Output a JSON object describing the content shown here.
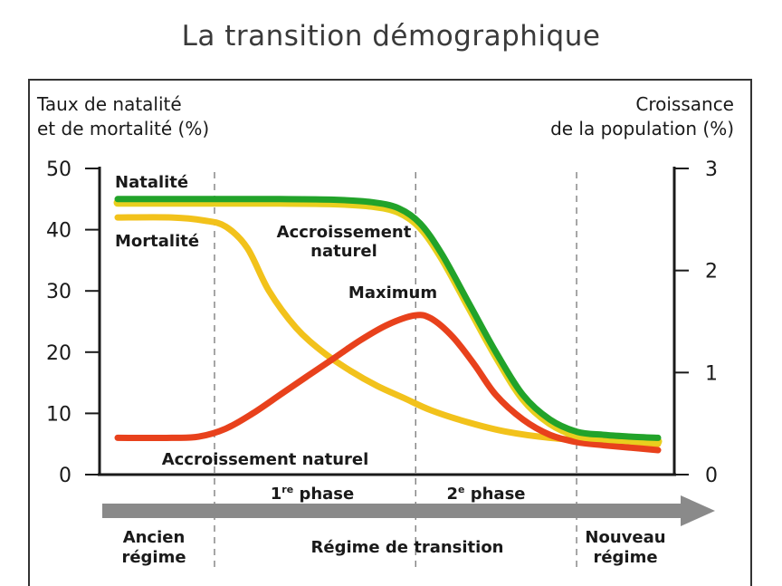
{
  "title": "La transition démographique",
  "chart_data": {
    "type": "line",
    "y_left_label_lines": [
      "Taux de natalité",
      "et de mortalité (%)"
    ],
    "y_right_label_lines": [
      "Croissance",
      "de la population (%)"
    ],
    "y_left_ticks": [
      0,
      10,
      20,
      30,
      40,
      50
    ],
    "y_left_lim": [
      0,
      50
    ],
    "y_right_ticks": [
      0,
      1,
      2,
      3
    ],
    "y_right_lim": [
      0,
      3
    ],
    "x_lim": [
      0,
      100
    ],
    "phase_boundaries": [
      20,
      55,
      83
    ],
    "series": [
      {
        "name": "Natalité",
        "color": "#22a32a",
        "axis": "left",
        "x": [
          0,
          10,
          20,
          30,
          40,
          47,
          52,
          56,
          60,
          65,
          70,
          75,
          80,
          85,
          90,
          95,
          100
        ],
        "y": [
          45,
          45,
          45,
          45,
          44.9,
          44.5,
          43.5,
          41,
          36,
          28,
          20,
          13,
          9,
          7,
          6.5,
          6.2,
          6
        ]
      },
      {
        "name": "Mortalité",
        "color": "#f2c21b",
        "axis": "left",
        "x": [
          0,
          10,
          16,
          20,
          24,
          28,
          33,
          38,
          43,
          48,
          53,
          58,
          65,
          72,
          80,
          88,
          95,
          100
        ],
        "y": [
          42,
          42,
          41.5,
          40.5,
          37,
          30,
          24,
          20,
          17,
          14.5,
          12.5,
          10.5,
          8.5,
          7,
          6,
          5.5,
          5.2,
          5
        ]
      },
      {
        "name": "Accroissement naturel",
        "color": "#e8411c",
        "axis": "left",
        "x": [
          0,
          10,
          15,
          20,
          25,
          30,
          35,
          40,
          45,
          50,
          55,
          58,
          62,
          66,
          70,
          75,
          80,
          85,
          90,
          95,
          100
        ],
        "y": [
          6,
          6,
          6.2,
          7.5,
          10,
          13,
          16,
          19,
          22,
          24.5,
          26,
          25.5,
          22.5,
          18,
          13,
          9,
          6.5,
          5.3,
          4.8,
          4.4,
          4
        ]
      }
    ],
    "annotations": [
      {
        "text": "Natalité"
      },
      {
        "text": "Mortalité"
      },
      {
        "text_lines": [
          "Accroissement",
          "naturel"
        ]
      },
      {
        "text": "Maximum"
      },
      {
        "text": "Accroissement naturel"
      }
    ],
    "phase_labels": [
      {
        "base": "1",
        "sup": "re",
        "rest": " phase"
      },
      {
        "base": "2",
        "sup": "e",
        "rest": " phase"
      }
    ],
    "regime_labels": [
      {
        "lines": [
          "Ancien",
          "régime"
        ]
      },
      {
        "lines": [
          "Régime de transition"
        ]
      },
      {
        "lines": [
          "Nouveau",
          "régime"
        ]
      }
    ]
  }
}
